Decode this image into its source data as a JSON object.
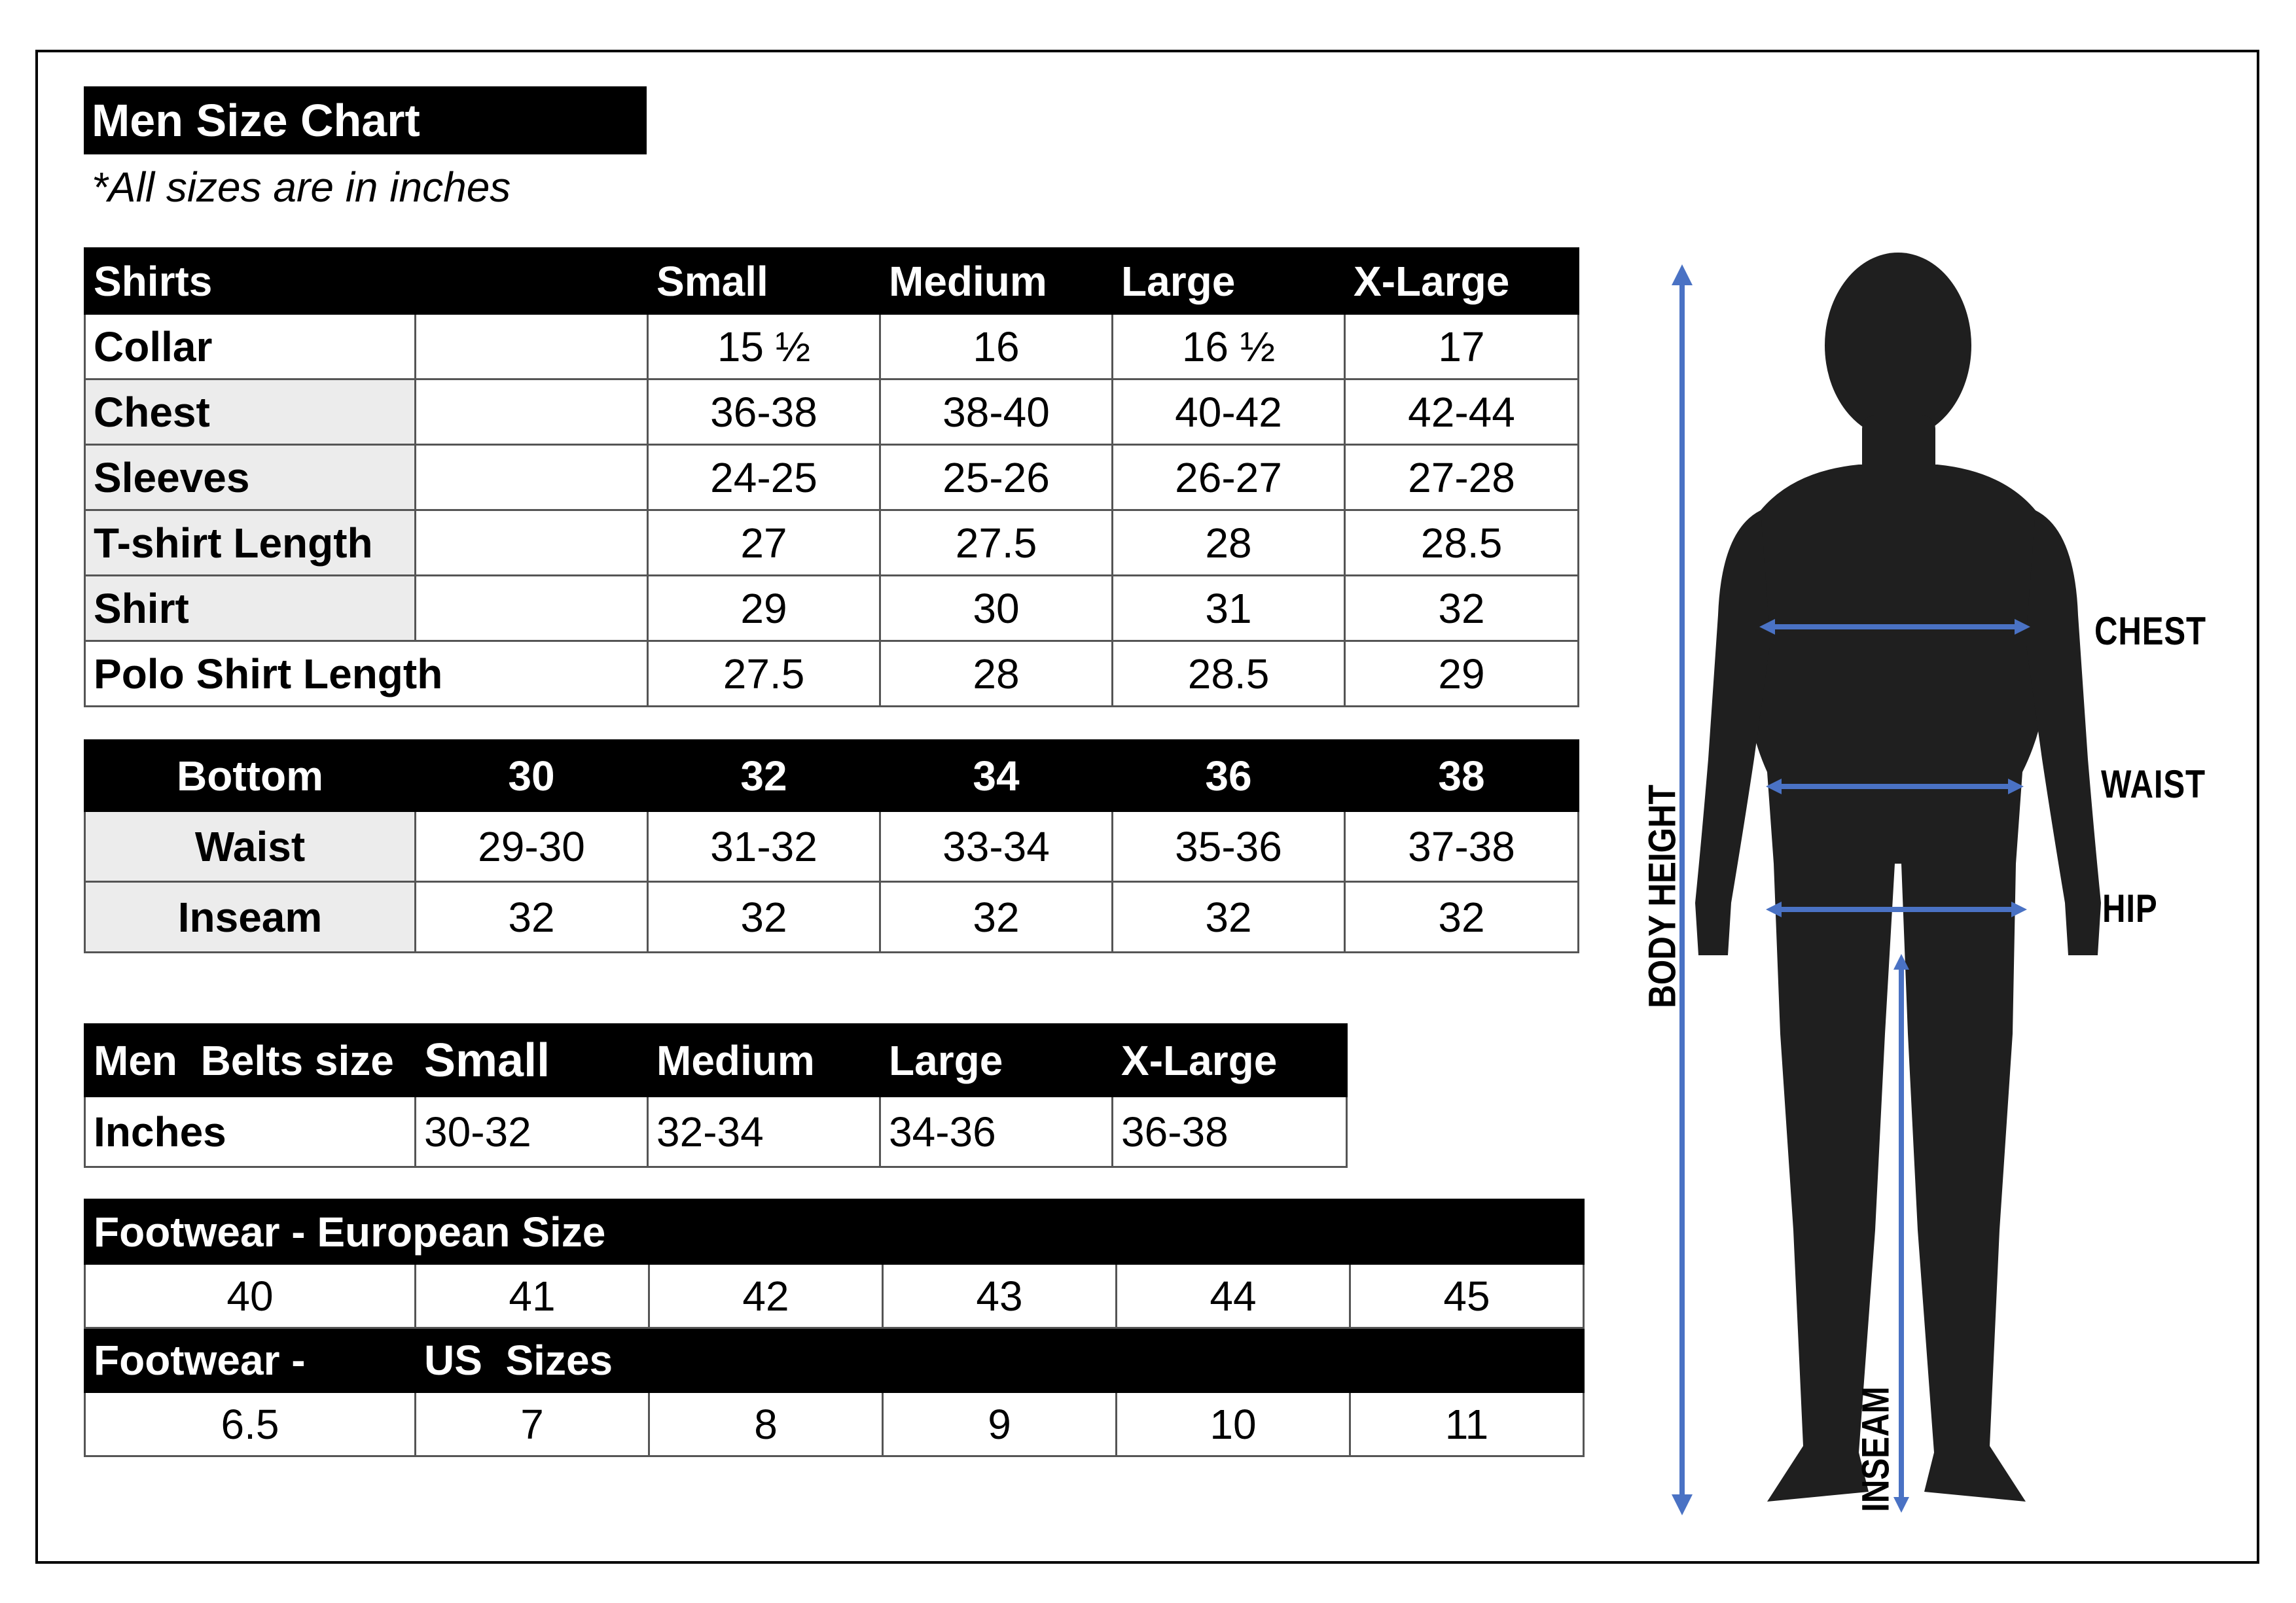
{
  "title": "Men Size Chart",
  "subtitle": "*All sizes are in inches",
  "shirts": {
    "headers": [
      "Shirts",
      "Small",
      "Medium",
      "Large",
      "X-Large"
    ],
    "rows": [
      {
        "label": "Collar",
        "values": [
          "15 ½",
          "16",
          "16 ½",
          "17"
        ]
      },
      {
        "label": "Chest",
        "values": [
          "36-38",
          "38-40",
          "40-42",
          "42-44"
        ]
      },
      {
        "label": "Sleeves",
        "values": [
          "24-25",
          "25-26",
          "26-27",
          "27-28"
        ]
      },
      {
        "label": "T-shirt Length",
        "values": [
          "27",
          "27.5",
          "28",
          "28.5"
        ]
      },
      {
        "label": "Shirt",
        "values": [
          "29",
          "30",
          "31",
          "32"
        ]
      },
      {
        "label": "Polo Shirt Length",
        "values": [
          "27.5",
          "28",
          "28.5",
          "29"
        ]
      }
    ]
  },
  "bottom": {
    "headers": [
      "Bottom",
      "30",
      "32",
      "34",
      "36",
      "38"
    ],
    "rows": [
      {
        "label": "Waist",
        "values": [
          "29-30",
          "31-32",
          "33-34",
          "35-36",
          "37-38"
        ]
      },
      {
        "label": "Inseam",
        "values": [
          "32",
          "32",
          "32",
          "32",
          "32"
        ]
      }
    ]
  },
  "belts": {
    "headers": [
      "Men  Belts size",
      "Small",
      "Medium",
      "Large",
      "X-Large"
    ],
    "rows": [
      {
        "label": "Inches",
        "values": [
          "30-32",
          "32-34",
          "34-36",
          "36-38"
        ]
      }
    ]
  },
  "footwear_eu": {
    "title": "Footwear - European Size",
    "values": [
      "40",
      "41",
      "42",
      "43",
      "44",
      "45"
    ]
  },
  "footwear_us": {
    "title_left": "Footwear -",
    "title_right": "US  Sizes",
    "values": [
      "6.5",
      "7",
      "8",
      "9",
      "10",
      "11"
    ]
  },
  "figure": {
    "labels": {
      "chest": "CHEST",
      "waist": "WAIST",
      "hip": "HIP",
      "body_height": "BODY HEIGHT",
      "inseam": "INSEAM"
    },
    "colors": {
      "silhouette": "#1f1f1f",
      "arrow": "#4a72c4"
    }
  }
}
